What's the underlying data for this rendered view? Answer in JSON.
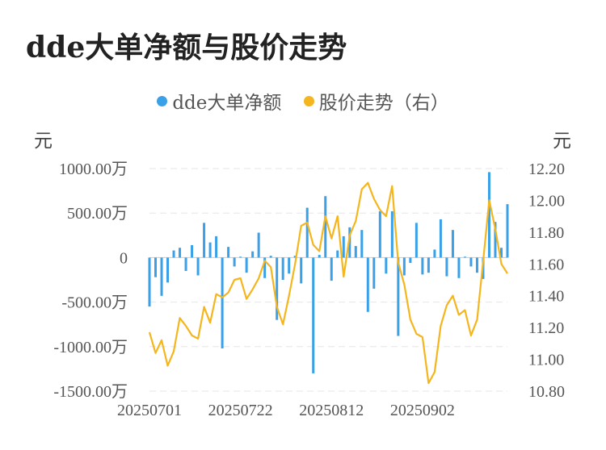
{
  "chart_data": {
    "type": "bar+line",
    "title": "dde大单净额与股价走势",
    "left_unit": "元",
    "right_unit": "元",
    "legend": [
      {
        "label": "dde大单净额",
        "color": "#3aa0e8"
      },
      {
        "label": "股价走势（右）",
        "color": "#f5b51c"
      }
    ],
    "y_left": {
      "min": -1500,
      "max": 1000,
      "ticks": [
        1000,
        500,
        0,
        -500,
        -1000,
        -1500
      ],
      "tick_labels": [
        "1000.00万",
        "500.00万",
        "0",
        "-500.00万",
        "-1000.00万",
        "-1500.00万"
      ]
    },
    "y_right": {
      "min": 10.8,
      "max": 12.2,
      "ticks": [
        12.2,
        12.0,
        11.8,
        11.6,
        11.4,
        11.2,
        11.0,
        10.8
      ],
      "tick_labels": [
        "12.20",
        "12.00",
        "11.80",
        "11.60",
        "11.40",
        "11.20",
        "11.00",
        "10.80"
      ]
    },
    "x_tick_labels": [
      {
        "index": 0,
        "label": "20250701"
      },
      {
        "index": 15,
        "label": "20250722"
      },
      {
        "index": 30,
        "label": "20250812"
      },
      {
        "index": 45,
        "label": "20250902"
      }
    ],
    "series": [
      {
        "name": "dde大单净额",
        "kind": "bar",
        "values": [
          -550,
          -220,
          -430,
          -280,
          80,
          110,
          -150,
          140,
          -200,
          390,
          170,
          240,
          -1020,
          120,
          -100,
          10,
          -170,
          70,
          280,
          -230,
          20,
          -700,
          -250,
          -180,
          20,
          -290,
          560,
          -1300,
          30,
          690,
          -260,
          80,
          240,
          340,
          130,
          310,
          -610,
          -350,
          520,
          -180,
          520,
          -880,
          -200,
          -60,
          390,
          -190,
          -170,
          90,
          430,
          -210,
          310,
          -230,
          10,
          -100,
          -170,
          -240,
          960,
          400,
          110,
          600
        ]
      },
      {
        "name": "股价走势（右）",
        "kind": "line",
        "values": [
          11.17,
          11.04,
          11.12,
          10.96,
          11.05,
          11.26,
          11.21,
          11.15,
          11.13,
          11.33,
          11.23,
          11.41,
          11.39,
          11.42,
          11.5,
          11.51,
          11.38,
          11.44,
          11.51,
          11.62,
          11.58,
          11.33,
          11.22,
          11.4,
          11.6,
          11.84,
          11.86,
          11.72,
          11.68,
          11.9,
          11.76,
          11.9,
          11.52,
          11.78,
          11.87,
          12.07,
          12.11,
          12.01,
          11.94,
          11.9,
          12.09,
          11.61,
          11.47,
          11.25,
          11.16,
          11.14,
          10.85,
          10.92,
          11.21,
          11.34,
          11.4,
          11.28,
          11.31,
          11.15,
          11.25,
          11.62,
          12.0,
          11.82,
          11.6,
          11.54
        ]
      }
    ]
  }
}
